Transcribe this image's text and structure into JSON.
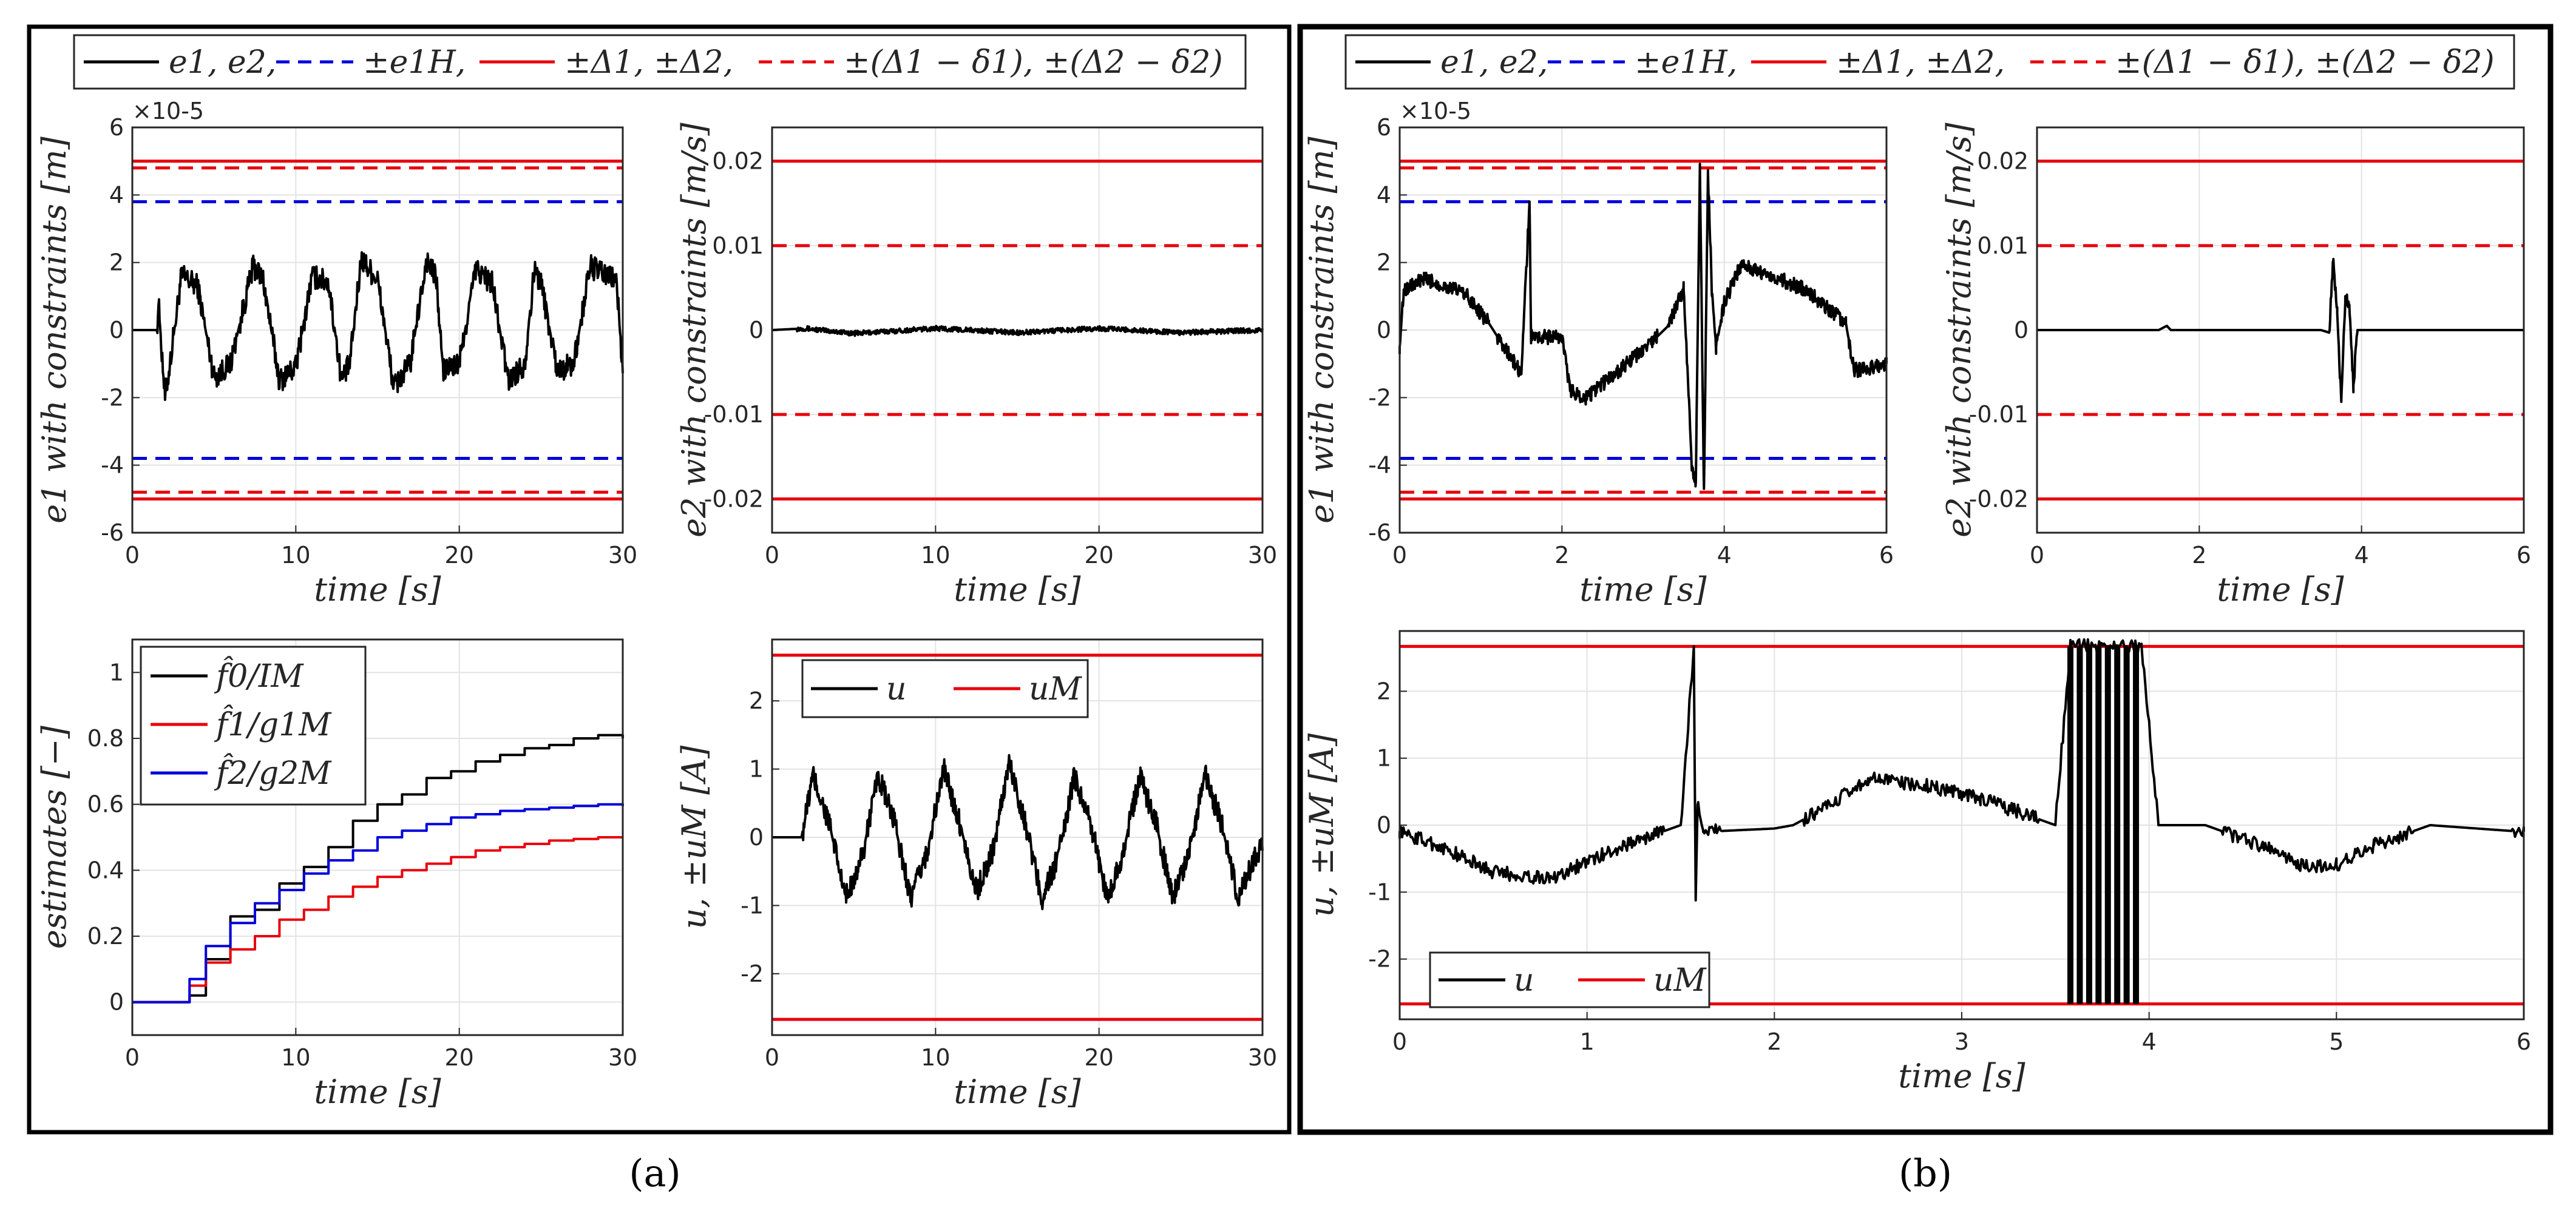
{
  "figure": {
    "caption_a": "(a)",
    "caption_b": "(b)",
    "legend_entries": [
      "e1, e2,",
      "±e1H,",
      "±Δ1, ±Δ2,",
      "±(Δ1 − δ1), ±(Δ2 − δ2)"
    ],
    "colors": {
      "signal": "#000000",
      "inner_bound": "#0000dd",
      "constraint": "#e8000b"
    }
  },
  "chart_data": [
    {
      "id": "a_e1",
      "type": "line",
      "title": "",
      "xlabel": "time [s]",
      "ylabel": "e1 with constraints [m]",
      "y_exponent": "×10-5",
      "xlim": [
        0,
        30
      ],
      "ylim": [
        -6,
        6
      ],
      "xticks": [
        "0",
        "10",
        "20",
        "30"
      ],
      "yticks": [
        "-6",
        "-4",
        "-2",
        "0",
        "2",
        "4",
        "6"
      ],
      "hlines": [
        {
          "name": "+Δ1",
          "y": 5,
          "style": "solid",
          "color": "#e8000b"
        },
        {
          "name": "-Δ1",
          "y": -5,
          "style": "solid",
          "color": "#e8000b"
        },
        {
          "name": "+(Δ1-δ1)",
          "y": 4.8,
          "style": "dashed",
          "color": "#e8000b"
        },
        {
          "name": "-(Δ1-δ1)",
          "y": -4.8,
          "style": "dashed",
          "color": "#e8000b"
        },
        {
          "name": "+e1H",
          "y": 3.8,
          "style": "dashed",
          "color": "#0000dd"
        },
        {
          "name": "-e1H",
          "y": -3.8,
          "style": "dashed",
          "color": "#0000dd"
        }
      ],
      "series": [
        {
          "name": "e1",
          "color": "#000000",
          "model": "periodic",
          "x": [
            0,
            1.5,
            1.6,
            2,
            2.3,
            3,
            4,
            5,
            6,
            7.4,
            8,
            9,
            10,
            11,
            12,
            12.8,
            13.3,
            14,
            15,
            16,
            17,
            18,
            18.6,
            19,
            20,
            21,
            22,
            23,
            24,
            24.6,
            25,
            26,
            27,
            28,
            29,
            29.6,
            30
          ],
          "y": [
            0,
            0,
            0.8,
            -2,
            -1,
            1.6,
            1.3,
            -1.4,
            -1.0,
            1.9,
            1.5,
            -1.5,
            -1.1,
            1.6,
            1.4,
            -1.5,
            -1.0,
            2.1,
            1.5,
            -1.7,
            -1.0,
            2.1,
            1.5,
            -1.2,
            -1.0,
            1.8,
            1.4,
            -1.5,
            -1.0,
            1.8,
            1.4,
            -1.2,
            -1.0,
            1.9,
            1.6,
            1.5,
            -1.2
          ]
        }
      ]
    },
    {
      "id": "a_e2",
      "type": "line",
      "xlabel": "time [s]",
      "ylabel": "e2 with constraints [m/s]",
      "xlim": [
        0,
        30
      ],
      "ylim": [
        -0.024,
        0.024
      ],
      "xticks": [
        "0",
        "10",
        "20",
        "30"
      ],
      "yticks": [
        "-0.02",
        "-0.01",
        "0",
        "0.01",
        "0.02"
      ],
      "hlines": [
        {
          "name": "+Δ2",
          "y": 0.02,
          "style": "solid",
          "color": "#e8000b"
        },
        {
          "name": "-Δ2",
          "y": -0.02,
          "style": "solid",
          "color": "#e8000b"
        },
        {
          "name": "+(Δ2-δ2)",
          "y": 0.01,
          "style": "dashed",
          "color": "#e8000b"
        },
        {
          "name": "-(Δ2-δ2)",
          "y": -0.01,
          "style": "dashed",
          "color": "#e8000b"
        }
      ],
      "series": [
        {
          "name": "e2",
          "color": "#000000",
          "model": "small_noise",
          "x": [
            0,
            2,
            5,
            10,
            15,
            20,
            25,
            30
          ],
          "y": [
            0,
            0.0002,
            -0.0004,
            0.0002,
            -0.0003,
            0.0002,
            -0.0003,
            0
          ]
        }
      ]
    },
    {
      "id": "a_est",
      "type": "line",
      "xlabel": "time [s]",
      "ylabel": "estimates [−]",
      "xlim": [
        0,
        30
      ],
      "ylim": [
        -0.1,
        1.1
      ],
      "xticks": [
        "0",
        "10",
        "20",
        "30"
      ],
      "yticks": [
        "0",
        "0.2",
        "0.4",
        "0.6",
        "0.8",
        "1"
      ],
      "legend": [
        "f̂0/IM",
        "f̂1/g1M",
        "f̂2/g2M"
      ],
      "series": [
        {
          "name": "f̂0/IM",
          "color": "#000000",
          "x": [
            0,
            2.5,
            3.5,
            4.5,
            6,
            7.5,
            9,
            10.5,
            12,
            13.5,
            15,
            16.5,
            18,
            19.5,
            21,
            22.5,
            24,
            25.5,
            27,
            28.5,
            30
          ],
          "y": [
            0,
            0,
            0.02,
            0.13,
            0.26,
            0.28,
            0.36,
            0.41,
            0.47,
            0.55,
            0.6,
            0.63,
            0.68,
            0.7,
            0.73,
            0.75,
            0.77,
            0.78,
            0.8,
            0.81,
            0.8
          ]
        },
        {
          "name": "f̂1/g1M",
          "color": "#e8000b",
          "x": [
            0,
            2.5,
            3.5,
            4.5,
            6,
            7.5,
            9,
            10.5,
            12,
            13.5,
            15,
            16.5,
            18,
            19.5,
            21,
            22.5,
            24,
            25.5,
            27,
            28.5,
            30
          ],
          "y": [
            0,
            0,
            0.05,
            0.12,
            0.16,
            0.2,
            0.25,
            0.28,
            0.32,
            0.35,
            0.38,
            0.4,
            0.42,
            0.44,
            0.46,
            0.47,
            0.48,
            0.49,
            0.495,
            0.5,
            0.5
          ]
        },
        {
          "name": "f̂2/g2M",
          "color": "#0000dd",
          "x": [
            0,
            2.5,
            3.5,
            4.5,
            6,
            7.5,
            9,
            10.5,
            12,
            13.5,
            15,
            16.5,
            18,
            19.5,
            21,
            22.5,
            24,
            25.5,
            27,
            28.5,
            30
          ],
          "y": [
            0,
            0,
            0.07,
            0.17,
            0.24,
            0.3,
            0.34,
            0.39,
            0.43,
            0.46,
            0.5,
            0.52,
            0.54,
            0.56,
            0.57,
            0.58,
            0.585,
            0.59,
            0.595,
            0.6,
            0.595
          ]
        }
      ]
    },
    {
      "id": "a_u",
      "type": "line",
      "xlabel": "time [s]",
      "ylabel": "u, ±uM [A]",
      "xlim": [
        0,
        30
      ],
      "ylim": [
        -2.9,
        2.9
      ],
      "xticks": [
        "0",
        "10",
        "20",
        "30"
      ],
      "yticks": [
        "-2",
        "-1",
        "0",
        "1",
        "2"
      ],
      "legend": [
        "u",
        "uM"
      ],
      "hlines": [
        {
          "name": "+uM",
          "y": 2.67,
          "style": "solid",
          "color": "#e8000b"
        },
        {
          "name": "-uM",
          "y": -2.67,
          "style": "solid",
          "color": "#e8000b"
        }
      ],
      "series": [
        {
          "name": "u",
          "color": "#000000",
          "model": "periodic",
          "x": [
            0,
            1.8,
            2.5,
            3.5,
            4.5,
            5.5,
            6.5,
            7.5,
            8.5,
            9.5,
            10.5,
            11.5,
            12.5,
            13.5,
            14.5,
            15.5,
            16.5,
            17.5,
            18.5,
            19.5,
            20.5,
            21.5,
            22.5,
            23.5,
            24.5,
            25.5,
            26.5,
            27.5,
            28.5,
            29.5,
            30
          ],
          "y": [
            0,
            0,
            0.9,
            0.2,
            -0.9,
            -0.3,
            0.9,
            0.2,
            -0.9,
            -0.2,
            1.0,
            0.2,
            -0.8,
            -0.2,
            1.1,
            0.2,
            -0.9,
            -0.3,
            0.9,
            0.2,
            -0.9,
            -0.2,
            0.9,
            0.2,
            -0.9,
            -0.2,
            0.9,
            0.2,
            -0.9,
            -0.3,
            -0.1
          ]
        }
      ]
    },
    {
      "id": "b_e1",
      "type": "line",
      "xlabel": "time [s]",
      "ylabel": "e1 with constraints [m]",
      "y_exponent": "×10-5",
      "xlim": [
        0,
        6
      ],
      "ylim": [
        -6,
        6
      ],
      "xticks": [
        "0",
        "2",
        "4",
        "6"
      ],
      "yticks": [
        "-6",
        "-4",
        "-2",
        "0",
        "2",
        "4",
        "6"
      ],
      "hlines": [
        {
          "name": "+Δ1",
          "y": 5,
          "style": "solid",
          "color": "#e8000b"
        },
        {
          "name": "-Δ1",
          "y": -5,
          "style": "solid",
          "color": "#e8000b"
        },
        {
          "name": "+(Δ1-δ1)",
          "y": 4.8,
          "style": "dashed",
          "color": "#e8000b"
        },
        {
          "name": "-(Δ1-δ1)",
          "y": -4.8,
          "style": "dashed",
          "color": "#e8000b"
        },
        {
          "name": "+e1H",
          "y": 3.8,
          "style": "dashed",
          "color": "#0000dd"
        },
        {
          "name": "-e1H",
          "y": -3.8,
          "style": "dashed",
          "color": "#0000dd"
        }
      ],
      "series": [
        {
          "name": "e1",
          "color": "#000000",
          "model": "segments",
          "x": [
            0,
            0.05,
            0.3,
            0.8,
            1.1,
            1.5,
            1.6,
            1.62,
            1.7,
            2.0,
            2.1,
            2.3,
            2.6,
            3.0,
            3.3,
            3.5,
            3.6,
            3.65,
            3.7,
            3.75,
            3.8,
            3.85,
            3.9,
            4.0,
            4.2,
            4.5,
            5.0,
            5.5,
            5.6,
            6.0
          ],
          "y": [
            -0.5,
            1.2,
            1.5,
            1.1,
            0.2,
            -1.3,
            3.8,
            -0.2,
            -0.2,
            -0.2,
            -1.8,
            -2.0,
            -1.4,
            -0.6,
            0.1,
            1.2,
            -4.0,
            -4.5,
            4.9,
            -4.7,
            4.7,
            1.0,
            -0.5,
            0.8,
            1.9,
            1.7,
            1.2,
            0.2,
            -1.2,
            -1.0
          ]
        }
      ]
    },
    {
      "id": "b_e2",
      "type": "line",
      "xlabel": "time [s]",
      "ylabel": "e2 with constraints [m/s]",
      "xlim": [
        0,
        6
      ],
      "ylim": [
        -0.024,
        0.024
      ],
      "xticks": [
        "0",
        "2",
        "4",
        "6"
      ],
      "yticks": [
        "-0.02",
        "-0.01",
        "0",
        "0.01",
        "0.02"
      ],
      "hlines": [
        {
          "name": "+Δ2",
          "y": 0.02,
          "style": "solid",
          "color": "#e8000b"
        },
        {
          "name": "-Δ2",
          "y": -0.02,
          "style": "solid",
          "color": "#e8000b"
        },
        {
          "name": "+(Δ2-δ2)",
          "y": 0.01,
          "style": "dashed",
          "color": "#e8000b"
        },
        {
          "name": "-(Δ2-δ2)",
          "y": -0.01,
          "style": "dashed",
          "color": "#e8000b"
        }
      ],
      "series": [
        {
          "name": "e2",
          "color": "#000000",
          "model": "segments",
          "x": [
            0,
            1.5,
            1.6,
            1.65,
            3.5,
            3.6,
            3.65,
            3.7,
            3.75,
            3.8,
            3.85,
            3.9,
            3.95,
            4.0,
            6.0
          ],
          "y": [
            0,
            0,
            0.0005,
            0,
            0,
            -0.0003,
            0.008,
            0.002,
            -0.0085,
            0.004,
            0.003,
            -0.0065,
            0,
            0,
            0
          ]
        }
      ]
    },
    {
      "id": "b_u",
      "type": "line",
      "xlabel": "time [s]",
      "ylabel": "u, ±uM [A]",
      "xlim": [
        0,
        6
      ],
      "ylim": [
        -2.9,
        2.9
      ],
      "xticks": [
        "0",
        "1",
        "2",
        "3",
        "4",
        "5",
        "6"
      ],
      "yticks": [
        "-2",
        "-1",
        "0",
        "1",
        "2"
      ],
      "legend": [
        "u",
        "uM"
      ],
      "hlines": [
        {
          "name": "+uM",
          "y": 2.67,
          "style": "solid",
          "color": "#e8000b"
        },
        {
          "name": "-uM",
          "y": -2.67,
          "style": "solid",
          "color": "#e8000b"
        }
      ],
      "series": [
        {
          "name": "u",
          "color": "#000000",
          "model": "segments",
          "x": [
            0,
            0.2,
            0.5,
            0.8,
            1.2,
            1.5,
            1.57,
            1.58,
            1.59,
            1.62,
            2.0,
            2.1,
            2.3,
            2.5,
            2.8,
            3.1,
            3.3,
            3.5,
            3.58,
            3.68,
            3.78,
            3.88,
            3.96,
            4.05,
            4.3,
            4.6,
            4.8,
            5.0,
            5.2,
            5.5,
            6.0
          ],
          "y": [
            -0.1,
            -0.3,
            -0.7,
            -0.8,
            -0.3,
            0,
            2.67,
            -1.1,
            0.3,
            -0.1,
            -0.05,
            0,
            0.3,
            0.7,
            0.6,
            0.4,
            0.2,
            0,
            2.67,
            2.67,
            2.67,
            2.67,
            2.67,
            0,
            0,
            -0.3,
            -0.6,
            -0.6,
            -0.3,
            0,
            -0.1
          ]
        }
      ]
    }
  ]
}
